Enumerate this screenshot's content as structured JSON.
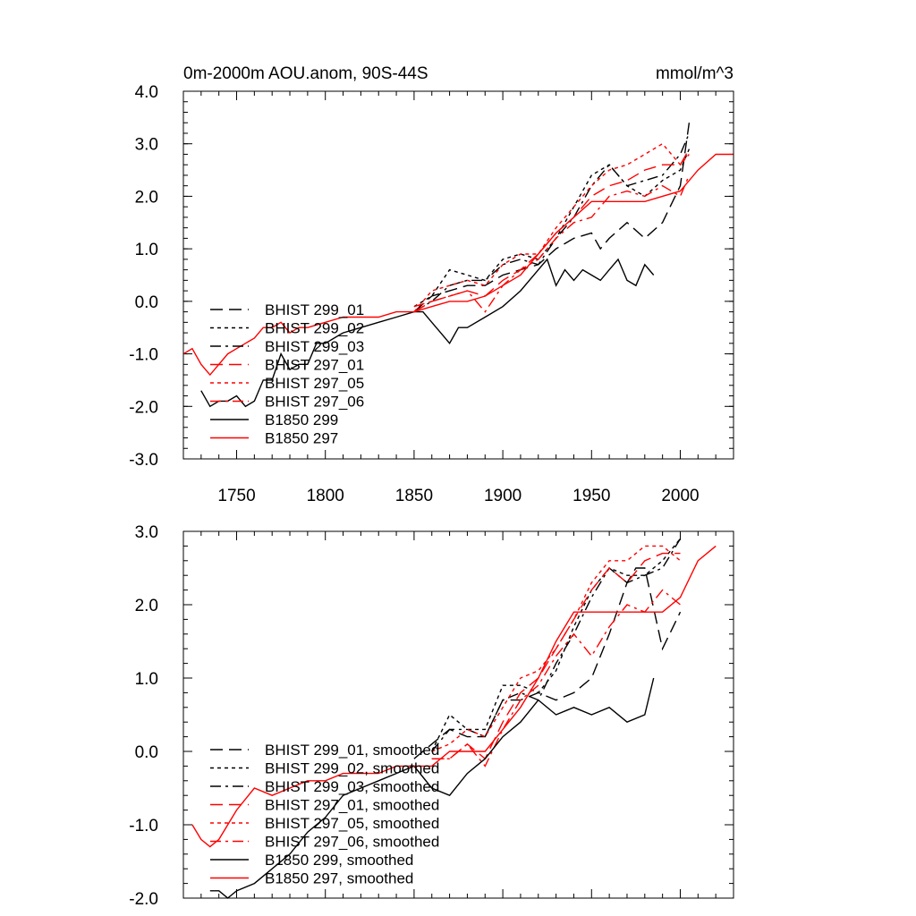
{
  "chart_data": [
    {
      "type": "line",
      "title": "0m-2000m AOU.anom, 90S-44S",
      "units": "mmol/m^3",
      "xlim": [
        1720,
        2030
      ],
      "ylim": [
        -3.0,
        4.0
      ],
      "x_ticks": [
        1750,
        1800,
        1850,
        1900,
        1950,
        2000
      ],
      "x_tick_labels": [
        "1750",
        "1800",
        "1850",
        "1900",
        "1950",
        "2000"
      ],
      "y_ticks": [
        4.0,
        3.0,
        2.0,
        1.0,
        0.0,
        -1.0,
        -2.0,
        -3.0
      ],
      "y_tick_labels": [
        "4.0",
        "3.0",
        "2.0",
        "1.0",
        "0.0",
        "-1.0",
        "-2.0",
        "-3.0"
      ],
      "legend_position": "lower-left",
      "series": [
        {
          "name": "BHIST 299_01",
          "color": "#000000",
          "dash": "long-dash",
          "x": [
            1850,
            1860,
            1870,
            1880,
            1890,
            1900,
            1910,
            1920,
            1930,
            1940,
            1950,
            1955,
            1960,
            1970,
            1980,
            1990,
            2000,
            2005
          ],
          "y": [
            -0.2,
            0.1,
            0.2,
            0.3,
            0.3,
            0.5,
            0.6,
            0.7,
            1.0,
            1.2,
            1.3,
            1.0,
            1.2,
            1.5,
            1.2,
            1.5,
            2.2,
            3.4
          ]
        },
        {
          "name": "BHIST 299_02",
          "color": "#000000",
          "dash": "short-dash",
          "x": [
            1850,
            1860,
            1870,
            1880,
            1890,
            1900,
            1910,
            1920,
            1930,
            1940,
            1950,
            1960,
            1970,
            1980,
            1990,
            2000,
            2005
          ],
          "y": [
            -0.1,
            0.1,
            0.6,
            0.5,
            0.4,
            0.8,
            0.9,
            0.8,
            1.2,
            1.8,
            2.4,
            2.6,
            2.2,
            2.0,
            2.3,
            2.5,
            2.9
          ]
        },
        {
          "name": "BHIST 299_03",
          "color": "#000000",
          "dash": "dash-dot",
          "x": [
            1850,
            1860,
            1870,
            1880,
            1890,
            1900,
            1910,
            1920,
            1930,
            1940,
            1950,
            1960,
            1970,
            1980,
            1990,
            2000,
            2005
          ],
          "y": [
            -0.2,
            0.0,
            0.3,
            0.4,
            0.4,
            0.7,
            0.8,
            0.7,
            1.2,
            1.6,
            2.2,
            2.6,
            2.2,
            2.3,
            2.4,
            2.8,
            3.2
          ]
        },
        {
          "name": "BHIST 297_01",
          "color": "#ff0000",
          "dash": "long-dash",
          "x": [
            1850,
            1860,
            1870,
            1880,
            1890,
            1900,
            1910,
            1920,
            1930,
            1940,
            1950,
            1960,
            1970,
            1980,
            1990,
            2000,
            2005
          ],
          "y": [
            -0.2,
            0.0,
            0.1,
            0.2,
            0.1,
            0.4,
            0.6,
            0.9,
            1.3,
            1.6,
            2.0,
            2.2,
            2.3,
            2.5,
            2.6,
            2.6,
            2.9
          ]
        },
        {
          "name": "BHIST 297_05",
          "color": "#ff0000",
          "dash": "short-dash",
          "x": [
            1850,
            1860,
            1870,
            1880,
            1890,
            1900,
            1910,
            1920,
            1930,
            1940,
            1950,
            1960,
            1970,
            1980,
            1990,
            2000,
            2005
          ],
          "y": [
            -0.2,
            0.2,
            0.3,
            0.4,
            0.3,
            0.7,
            0.9,
            0.9,
            1.4,
            1.8,
            2.2,
            2.5,
            2.6,
            2.8,
            3.0,
            2.6,
            2.8
          ]
        },
        {
          "name": "BHIST 297_06",
          "color": "#ff0000",
          "dash": "dash-dot",
          "x": [
            1850,
            1860,
            1870,
            1880,
            1890,
            1900,
            1910,
            1920,
            1930,
            1940,
            1950,
            1960,
            1970,
            1980,
            1990,
            2000,
            2005
          ],
          "y": [
            -0.1,
            0.0,
            0.1,
            0.2,
            -0.2,
            0.3,
            0.6,
            0.8,
            1.2,
            1.5,
            1.6,
            2.0,
            2.1,
            2.0,
            2.2,
            2.0,
            2.4
          ]
        },
        {
          "name": "B1850 299",
          "color": "#000000",
          "dash": "solid",
          "x": [
            1730,
            1735,
            1740,
            1745,
            1750,
            1755,
            1760,
            1765,
            1770,
            1775,
            1780,
            1785,
            1790,
            1795,
            1800,
            1810,
            1820,
            1830,
            1840,
            1850,
            1855,
            1860,
            1865,
            1870,
            1875,
            1880,
            1890,
            1900,
            1910,
            1920,
            1925,
            1930,
            1935,
            1940,
            1945,
            1950,
            1955,
            1960,
            1965,
            1970,
            1975,
            1980,
            1985
          ],
          "y": [
            -1.7,
            -2.0,
            -1.9,
            -1.9,
            -1.8,
            -2.0,
            -1.9,
            -1.5,
            -1.5,
            -1.0,
            -1.3,
            -1.2,
            -1.2,
            -0.8,
            -0.8,
            -0.6,
            -0.5,
            -0.4,
            -0.3,
            -0.2,
            -0.2,
            -0.4,
            -0.6,
            -0.8,
            -0.5,
            -0.5,
            -0.3,
            -0.1,
            0.2,
            0.6,
            0.8,
            0.3,
            0.6,
            0.4,
            0.6,
            0.5,
            0.4,
            0.6,
            0.8,
            0.4,
            0.3,
            0.7,
            0.5
          ]
        },
        {
          "name": "B1850 297",
          "color": "#ff0000",
          "dash": "solid",
          "x": [
            1720,
            1725,
            1730,
            1735,
            1740,
            1745,
            1750,
            1755,
            1760,
            1765,
            1770,
            1775,
            1780,
            1785,
            1790,
            1800,
            1810,
            1820,
            1830,
            1840,
            1850,
            1860,
            1870,
            1880,
            1890,
            1900,
            1910,
            1920,
            1930,
            1940,
            1950,
            1960,
            1970,
            1980,
            1990,
            2000,
            2010,
            2020,
            2030
          ],
          "y": [
            -1.0,
            -0.9,
            -1.2,
            -1.4,
            -1.2,
            -1.0,
            -0.9,
            -0.8,
            -0.7,
            -0.5,
            -0.5,
            -0.4,
            -0.6,
            -0.5,
            -0.5,
            -0.4,
            -0.3,
            -0.3,
            -0.3,
            -0.2,
            -0.2,
            -0.1,
            0.0,
            0.0,
            0.1,
            0.3,
            0.5,
            0.9,
            1.3,
            1.6,
            1.9,
            1.9,
            1.9,
            1.9,
            2.0,
            2.1,
            2.5,
            2.8,
            2.8
          ]
        }
      ]
    },
    {
      "type": "line",
      "title": "",
      "xlim": [
        1720,
        2030
      ],
      "ylim": [
        -2.0,
        3.0
      ],
      "x_ticks": [
        1750,
        1800,
        1850,
        1900,
        1950,
        2000
      ],
      "y_ticks": [
        3.0,
        2.0,
        1.0,
        0.0,
        -1.0,
        -2.0
      ],
      "y_tick_labels": [
        "3.0",
        "2.0",
        "1.0",
        "0.0",
        "-1.0",
        "-2.0"
      ],
      "legend_position": "lower-left",
      "series": [
        {
          "name": "BHIST 299_01, smoothed",
          "color": "#000000",
          "dash": "long-dash",
          "x": [
            1850,
            1860,
            1870,
            1880,
            1890,
            1900,
            1910,
            1920,
            1930,
            1940,
            1950,
            1960,
            1970,
            1975,
            1980,
            1990,
            2000
          ],
          "y": [
            -0.1,
            0.1,
            0.3,
            0.2,
            0.2,
            0.7,
            0.7,
            0.8,
            0.7,
            0.8,
            1.0,
            1.6,
            2.3,
            2.5,
            2.5,
            1.4,
            1.9
          ]
        },
        {
          "name": "BHIST 299_02, smoothed",
          "color": "#000000",
          "dash": "short-dash",
          "x": [
            1860,
            1870,
            1880,
            1890,
            1900,
            1910,
            1920,
            1930,
            1940,
            1950,
            1960,
            1970,
            1980,
            1990,
            2000
          ],
          "y": [
            0.0,
            0.5,
            0.3,
            0.3,
            0.9,
            0.9,
            0.8,
            1.1,
            1.7,
            2.2,
            2.5,
            2.4,
            2.4,
            2.6,
            2.9
          ]
        },
        {
          "name": "BHIST 299_03, smoothed",
          "color": "#000000",
          "dash": "dash-dot",
          "x": [
            1860,
            1870,
            1880,
            1890,
            1900,
            1910,
            1920,
            1930,
            1940,
            1950,
            1960,
            1970,
            1980,
            1990,
            2000
          ],
          "y": [
            0.0,
            0.3,
            0.3,
            0.2,
            0.7,
            0.8,
            0.7,
            1.2,
            1.6,
            2.1,
            2.5,
            2.3,
            2.4,
            2.5,
            2.9
          ]
        },
        {
          "name": "BHIST 297_01, smoothed",
          "color": "#ff0000",
          "dash": "long-dash",
          "x": [
            1860,
            1870,
            1880,
            1890,
            1900,
            1910,
            1920,
            1930,
            1940,
            1950,
            1960,
            1970,
            1980,
            1990,
            2000
          ],
          "y": [
            -0.1,
            -0.1,
            0.1,
            -0.1,
            0.4,
            0.8,
            1.0,
            1.4,
            1.8,
            2.2,
            2.5,
            2.3,
            2.6,
            2.7,
            2.7
          ]
        },
        {
          "name": "BHIST 297_05, smoothed",
          "color": "#ff0000",
          "dash": "short-dash",
          "x": [
            1860,
            1870,
            1880,
            1890,
            1900,
            1910,
            1920,
            1930,
            1940,
            1950,
            1960,
            1970,
            1980,
            1990,
            2000
          ],
          "y": [
            0.0,
            0.1,
            0.3,
            0.2,
            0.6,
            1.0,
            1.1,
            1.4,
            1.8,
            2.3,
            2.6,
            2.6,
            2.8,
            2.8,
            2.6
          ]
        },
        {
          "name": "BHIST 297_06, smoothed",
          "color": "#ff0000",
          "dash": "dash-dot",
          "x": [
            1860,
            1870,
            1880,
            1890,
            1900,
            1910,
            1920,
            1930,
            1940,
            1950,
            1960,
            1970,
            1980,
            1990,
            2000
          ],
          "y": [
            -0.1,
            -0.1,
            0.1,
            -0.2,
            0.3,
            0.7,
            0.9,
            1.3,
            1.6,
            1.3,
            1.7,
            2.0,
            1.9,
            2.2,
            2.0
          ]
        },
        {
          "name": "B1850 299, smoothed",
          "color": "#000000",
          "dash": "solid",
          "x": [
            1735,
            1740,
            1745,
            1750,
            1760,
            1770,
            1780,
            1790,
            1800,
            1810,
            1820,
            1830,
            1840,
            1850,
            1860,
            1870,
            1880,
            1890,
            1900,
            1910,
            1920,
            1930,
            1940,
            1950,
            1960,
            1970,
            1980,
            1985
          ],
          "y": [
            -1.9,
            -1.9,
            -2.0,
            -1.9,
            -1.8,
            -1.6,
            -1.4,
            -1.1,
            -0.9,
            -0.6,
            -0.5,
            -0.4,
            -0.3,
            -0.2,
            -0.5,
            -0.6,
            -0.3,
            -0.1,
            0.2,
            0.4,
            0.7,
            0.5,
            0.6,
            0.5,
            0.6,
            0.4,
            0.5,
            1.0
          ]
        },
        {
          "name": "B1850 297, smoothed",
          "color": "#ff0000",
          "dash": "solid",
          "x": [
            1725,
            1730,
            1735,
            1740,
            1750,
            1760,
            1770,
            1780,
            1790,
            1800,
            1810,
            1820,
            1830,
            1840,
            1850,
            1860,
            1870,
            1880,
            1890,
            1900,
            1910,
            1920,
            1930,
            1940,
            1950,
            1960,
            1970,
            1980,
            1990,
            2000,
            2010,
            2020
          ],
          "y": [
            -1.0,
            -1.2,
            -1.3,
            -1.2,
            -0.8,
            -0.5,
            -0.6,
            -0.5,
            -0.4,
            -0.4,
            -0.3,
            -0.3,
            -0.3,
            -0.2,
            -0.2,
            -0.2,
            0.0,
            0.0,
            0.0,
            0.3,
            0.6,
            1.0,
            1.5,
            1.9,
            1.9,
            1.9,
            1.9,
            1.9,
            1.9,
            2.1,
            2.6,
            2.8
          ]
        }
      ]
    }
  ]
}
